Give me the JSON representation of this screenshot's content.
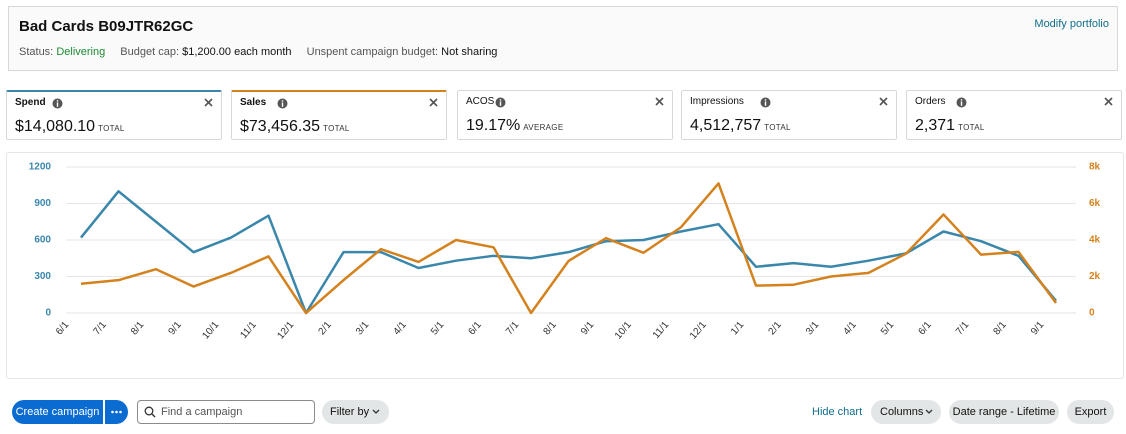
{
  "header": {
    "title": "Bad Cards B09JTR62GC",
    "action": "Modify portfolio",
    "status_label": "Status:",
    "status_value": "Delivering",
    "budget_label": "Budget cap:",
    "budget_value": "$1,200.00 each month",
    "unspent_label": "Unspent campaign budget:",
    "unspent_value": "Not sharing"
  },
  "metrics": [
    {
      "value": "$14,080.10",
      "unit": "TOTAL"
    },
    {
      "value": "$73,456.35",
      "unit": "TOTAL"
    },
    {
      "label": "ACOS",
      "value": "19.17%",
      "unit": "AVERAGE"
    },
    {
      "label": "Impressions",
      "value": "4,512,757",
      "unit": "TOTAL"
    },
    {
      "label": "Orders",
      "value": "2,371",
      "unit": "TOTAL"
    }
  ],
  "chart_data": {
    "type": "line",
    "categories": [
      "6/1",
      "7/1",
      "8/1",
      "9/1",
      "10/1",
      "11/1",
      "12/1",
      "2/1",
      "3/1",
      "4/1",
      "5/1",
      "6/1",
      "7/1",
      "8/1",
      "9/1",
      "10/1",
      "11/1",
      "12/1",
      "1/1",
      "2/1",
      "3/1",
      "4/1",
      "5/1",
      "6/1",
      "7/1",
      "8/1",
      "9/1"
    ],
    "series": [
      {
        "name": "Spend",
        "color": "#3a87ab",
        "axis": "y",
        "values": [
          620,
          1000,
          750,
          500,
          620,
          800,
          0,
          500,
          500,
          370,
          430,
          470,
          450,
          500,
          590,
          600,
          670,
          730,
          380,
          410,
          380,
          430,
          490,
          670,
          590,
          470,
          100
        ]
      },
      {
        "name": "Sales",
        "color": "#d4821e",
        "axis": "y2",
        "values": [
          1600,
          1800,
          2400,
          1450,
          2200,
          3100,
          0,
          1800,
          3500,
          2800,
          4000,
          3600,
          0,
          2850,
          4100,
          3300,
          4700,
          7100,
          1500,
          1550,
          2000,
          2200,
          3250,
          5400,
          3200,
          3350,
          550
        ]
      }
    ],
    "ylim": [
      0,
      1200
    ],
    "yticks": [
      0,
      300,
      600,
      900,
      1200
    ],
    "y2lim": [
      0,
      8000
    ],
    "y2ticks": [
      0,
      {
        "value": 2000,
        "label": "2k"
      },
      {
        "value": 4000,
        "label": "4k"
      },
      {
        "value": 6000,
        "label": "6k"
      },
      {
        "value": 8000,
        "label": "8k"
      }
    ],
    "grid": true
  },
  "toolbar": {
    "create": "Create campaign",
    "search_placeholder": "Find a campaign",
    "filter": "Filter by",
    "hide_chart": "Hide chart",
    "columns": "Columns",
    "date_range": "Date range - Lifetime",
    "export": "Export"
  }
}
